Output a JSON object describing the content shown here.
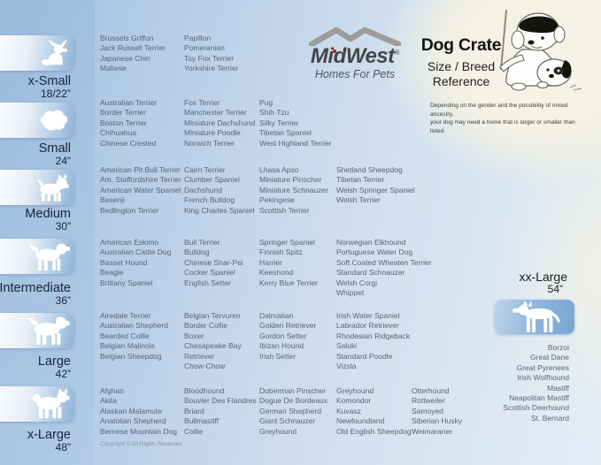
{
  "header": {
    "brand": {
      "name": "MidWest",
      "registered": "®",
      "tagline": "Homes For Pets",
      "logo_icon": "roofline-icon"
    },
    "title": "Dog Crate",
    "subtitle": [
      "Size / Breed",
      "Reference"
    ],
    "disclaimer": [
      "Depending on the gender and the possibility of mixed ancestry,",
      "your dog may need a home that is larger or smaller than listed."
    ],
    "illustration": "teacher-dog-with-puppy-illustration"
  },
  "size_groups": [
    {
      "label": "x-Small",
      "size": "18/22”",
      "icon": "papillon-icon",
      "columns": [
        [
          "Brussels Griffon",
          "Jack Russell Terrier",
          "Japanese Chin",
          "Maltese"
        ],
        [
          "Papillon",
          "Pomeranian",
          "Toy Fox Terrier",
          "Yorkshire Terrier"
        ]
      ]
    },
    {
      "label": "Small",
      "size": "24”",
      "icon": "shih-tzu-icon",
      "columns": [
        [
          "Australian Terrier",
          "Border Terrier",
          "Boston Terrier",
          "Chihuahua",
          "Chinese Crested"
        ],
        [
          "Fox Terrier",
          "Manchester Terrier",
          "Miniature Dachshund",
          "Miniature Poodle",
          "Norwich Terrier"
        ],
        [
          "Pug",
          "Shih Tzu",
          "Silky Terrier",
          "Tibetan Spaniel",
          "West Highland Terrier"
        ]
      ]
    },
    {
      "label": "Medium",
      "size": "30”",
      "icon": "westie-icon",
      "columns": [
        [
          "American Pit Bull Terrier",
          "Am. Staffordshire Terrier",
          "American Water Spaniel",
          "Basenji",
          "Bedlington Terrier"
        ],
        [
          "Cairn Terrier",
          "Clumber Spaniel",
          "Dachshund",
          "French Bulldog",
          "King Charles Spaniel"
        ],
        [
          "Lhasa Apso",
          "Miniature Pinscher",
          "Miniature Schnauzer",
          "Pekingese",
          "Scottish Terrier"
        ],
        [
          "Shetland Sheepdog",
          "Tibetan Terrier",
          "Welsh Springer Spaniel",
          "Welsh Terrier"
        ]
      ]
    },
    {
      "label": "Intermediate",
      "size": "36”",
      "icon": "spaniel-icon",
      "columns": [
        [
          "American Eskimo",
          "Australian Cattle Dog",
          "Basset Hound",
          "Beagle",
          "Brittany Spaniel"
        ],
        [
          "Bull Terrier",
          "Bulldog",
          "Chinese Shar-Pei",
          "Cocker Spaniel",
          "English Setter"
        ],
        [
          "Springer Spaniel",
          "Finnish Spitz",
          "Harrier",
          "Keeshond",
          "Kerry Blue Terrier"
        ],
        [
          "Norwegian Elkhound",
          "Portuguese Water Dog",
          "Soft Coated Wheaten Terrier",
          "Standard Schnauzer",
          "Welsh Corgi",
          "Whippet"
        ]
      ]
    },
    {
      "label": "Large",
      "size": "42”",
      "icon": "retriever-icon",
      "columns": [
        [
          "Airedale Terrier",
          "Australian Shepherd",
          "Bearded Collie",
          "Belgian Malinois",
          "Belgian Sheepdog"
        ],
        [
          "Belgian Tervuren",
          "Border Collie",
          "Boxer",
          "Chesapeake Bay Retriever",
          "Chow-Chow"
        ],
        [
          "Dalmatian",
          "Golden Retriever",
          "Gordon Setter",
          "Ibizan Hound",
          "Irish Setter"
        ],
        [
          "Irish Water Spaniel",
          "Labrador Retriever",
          "Rhodesian Ridgeback",
          "Saluki",
          "Standard Poodle",
          "Vizsla"
        ]
      ]
    },
    {
      "label": "x-Large",
      "size": "48”",
      "icon": "akita-icon",
      "columns": [
        [
          "Afghan",
          "Akita",
          "Alaskan Malamute",
          "Anatolian Shepherd",
          "Bernese Mountain Dog"
        ],
        [
          "Bloodhound",
          "Bouvier Des Flandres",
          "Briard",
          "Bullmastiff",
          "Collie"
        ],
        [
          "Doberman Pinscher",
          "Dogue De Bordeaux",
          "German Shepherd",
          "Giant Schnauzer",
          "Greyhound"
        ],
        [
          "Greyhound",
          "Komondor",
          "Kuvasz",
          "Newfoundland",
          "Old English Sheepdog"
        ],
        [
          "Otterhound",
          "Rottweiler",
          "Samoyed",
          "Siberian Husky",
          "Weimaraner"
        ]
      ]
    }
  ],
  "xx_large": {
    "label": "xx-Large",
    "size": "54”",
    "icon": "great-dane-icon",
    "breeds": [
      "Borzoi",
      "Great Dane",
      "Great Pyrenees",
      "Irish Wolfhound",
      "Mastiff",
      "Neapolitan Mastiff",
      "Scottish Deerhound",
      "St. Bernard"
    ]
  },
  "wrapped_breeds": [
    "Chesapeake Bay Retriever"
  ],
  "footer": {
    "copyright": "Copyright © All Rights Reserved"
  },
  "colors": {
    "background_blue": "#a2c1e0",
    "background_cream": "#f5f3e6",
    "card_blue": "#8fb4d9",
    "label_navy": "#17233d",
    "breed_text": "#59666f",
    "brand_gray": "#454547",
    "accent_red": "#c8102e"
  }
}
